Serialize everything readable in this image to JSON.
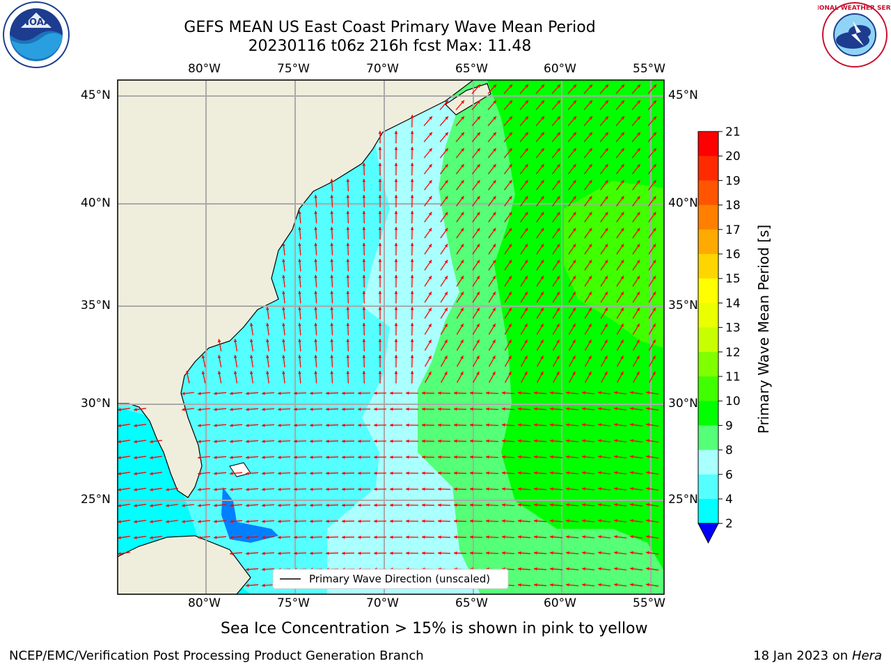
{
  "title": {
    "line1": "GEFS MEAN US East Coast Primary Wave Mean Period",
    "line2": "20230116 t06z 216h fcst   Max: 11.48"
  },
  "map": {
    "top_lon_labels": [
      "80°W",
      "75°W",
      "70°W",
      "65°W",
      "60°W",
      "55°W"
    ],
    "bottom_lon_labels": [
      "80°W",
      "75°W",
      "70°W",
      "65°W",
      "60°W",
      "55°W"
    ],
    "left_lat_labels": [
      "45°N",
      "40°N",
      "35°N",
      "30°N",
      "25°N"
    ],
    "right_lat_labels": [
      "45°N",
      "40°N",
      "35°N",
      "30°N",
      "25°N"
    ],
    "legend_text": "Primary Wave Direction (unscaled)",
    "arrow_color": "#ff0000",
    "land_color": "#efeddc"
  },
  "colorbar": {
    "label": "Primary Wave Mean Period [s]",
    "ticks": [
      "21",
      "20",
      "19",
      "18",
      "17",
      "16",
      "15",
      "14",
      "13",
      "12",
      "11",
      "10",
      "9",
      "8",
      "6",
      "4",
      "2"
    ],
    "colors": [
      "#ff0000",
      "#ff2a00",
      "#ff5500",
      "#ff8000",
      "#ffaa00",
      "#ffd500",
      "#ffff00",
      "#eaff00",
      "#c8ff00",
      "#80ff00",
      "#40ff00",
      "#00ff00",
      "#55ff77",
      "#aaffff",
      "#55ffff",
      "#00ffff",
      "#0080ff"
    ],
    "extend_color": "#0000ff"
  },
  "caption": "Sea Ice Concentration > 15% is shown in pink to yellow",
  "footer": {
    "left": "NCEP/EMC/Verification Post Processing Product Generation Branch",
    "right_date": "18 Jan 2023 on ",
    "right_host": "Hera"
  },
  "logos": {
    "noaa_text": "NOAA",
    "nws_text": "NATIONAL WEATHER SERVICE"
  }
}
